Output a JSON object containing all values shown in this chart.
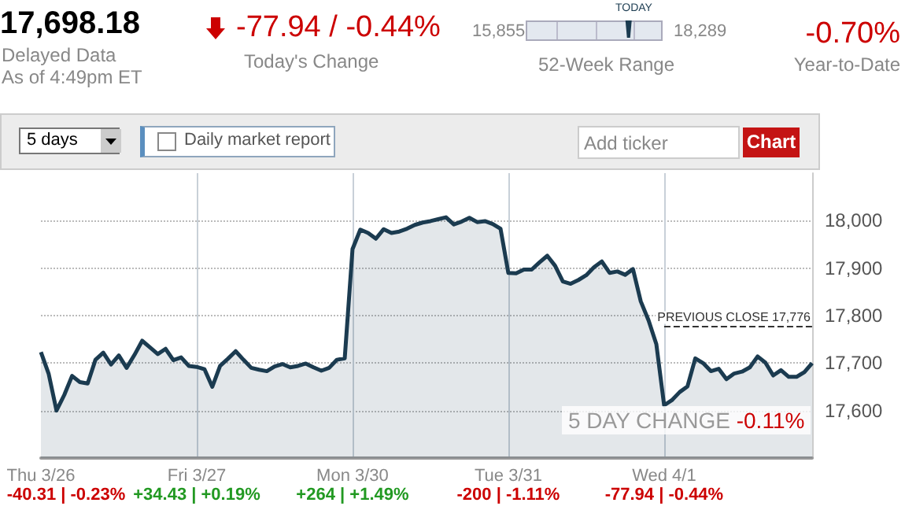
{
  "chart_data": {
    "type": "area",
    "title": "17,698.18",
    "annotations": [
      "Delayed Data",
      "As of 4:49pm ET",
      "-77.94 / -0.44%",
      "Today's Change",
      "15,855",
      "18,289",
      "TODAY",
      "52-Week Range",
      "-0.70%",
      "Year-to-Date",
      "5 days",
      "Daily market report",
      "Add ticker",
      "Chart",
      "5 DAY CHANGE -0.11%",
      "-40.31 | -0.23%",
      "+34.43 | +0.19%",
      "+264 | +1.49%",
      "-200 | -1.11%",
      "-77.94 | -0.44%"
    ],
    "categories": [
      "Thu 3/26",
      null,
      null,
      null,
      null,
      null,
      null,
      null,
      null,
      null,
      null,
      null,
      null,
      null,
      null,
      null,
      null,
      null,
      null,
      null,
      "Fri 3/27",
      null,
      null,
      null,
      null,
      null,
      null,
      null,
      null,
      null,
      null,
      null,
      null,
      null,
      null,
      null,
      null,
      null,
      null,
      null,
      "Mon 3/30",
      null,
      null,
      null,
      null,
      null,
      null,
      null,
      null,
      null,
      null,
      null,
      null,
      null,
      null,
      null,
      null,
      null,
      null,
      null,
      "Tue 3/31",
      null,
      null,
      null,
      null,
      null,
      null,
      null,
      null,
      null,
      null,
      null,
      null,
      null,
      null,
      null,
      null,
      null,
      null,
      null,
      "Wed 4/1",
      null,
      null,
      null,
      null,
      null,
      null,
      null,
      null,
      null,
      null,
      null,
      null,
      null,
      null,
      null,
      null,
      null,
      null,
      null
    ],
    "values": [
      17723,
      17677,
      17600,
      17633,
      17673,
      17660,
      17657,
      17707,
      17722,
      17697,
      17716,
      17690,
      17717,
      17747,
      17733,
      17719,
      17730,
      17706,
      17712,
      17694,
      17692,
      17687,
      17650,
      17694,
      17709,
      17725,
      17707,
      17690,
      17686,
      17683,
      17693,
      17698,
      17691,
      17694,
      17699,
      17691,
      17684,
      17690,
      17707,
      17710,
      17940,
      17981,
      17974,
      17962,
      17982,
      17974,
      17977,
      17983,
      17991,
      17996,
      17999,
      18003,
      18007,
      17992,
      17998,
      18006,
      17997,
      17999,
      17993,
      17983,
      17890,
      17889,
      17897,
      17897,
      17912,
      17926,
      17905,
      17872,
      17867,
      17875,
      17885,
      17902,
      17914,
      17890,
      17893,
      17886,
      17898,
      17830,
      17790,
      17740,
      17611,
      17622,
      17639,
      17651,
      17710,
      17700,
      17683,
      17688,
      17666,
      17678,
      17682,
      17691,
      17714,
      17701,
      17674,
      17685,
      17671,
      17671,
      17681,
      17700
    ],
    "color": "#1b3b50",
    "ylim": [
      17500,
      18100
    ],
    "yticks": [
      {
        "value": 17600,
        "label": "17,600"
      },
      {
        "value": 17700,
        "label": "17,700"
      },
      {
        "value": 17800,
        "label": "17,800"
      },
      {
        "value": 17900,
        "label": "17,900"
      },
      {
        "value": 18000,
        "label": "18,000"
      }
    ],
    "grid": true,
    "ref_lines": [
      {
        "axis": "y",
        "value": 17776,
        "label": "PREVIOUS CLOSE 17,776",
        "line_style": "dashed"
      }
    ]
  }
}
